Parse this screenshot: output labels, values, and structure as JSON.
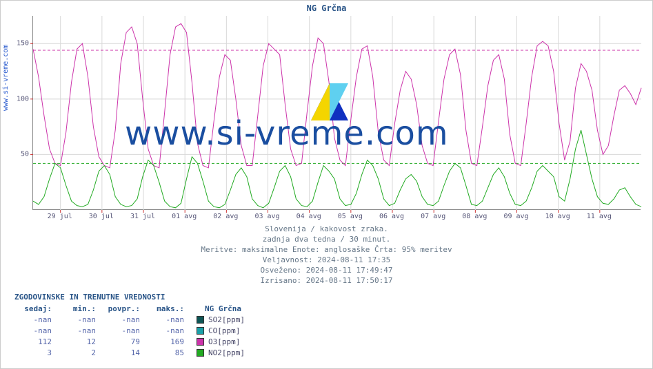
{
  "title": "NG Grčna",
  "ylabel_source": "www.si-vreme.com",
  "watermark_text": "www.si-vreme.com",
  "chart": {
    "type": "line",
    "background_color": "#ffffff",
    "grid_color": "#d8d8d8",
    "grid_on": true,
    "axis_color": "#888888",
    "label_fontsize": 10,
    "ylim": [
      0,
      175
    ],
    "ytick_step": 50,
    "yticks": [
      50,
      100,
      150
    ],
    "xtick_labels": [
      "29 jul",
      "30 jul",
      "31 jul",
      "01 avg",
      "02 avg",
      "03 avg",
      "04 avg",
      "05 avg",
      "06 avg",
      "07 avg",
      "08 avg",
      "09 avg",
      "10 avg",
      "11 avg"
    ],
    "dashed_lines": [
      {
        "y": 144,
        "color": "#cc33aa"
      },
      {
        "y": 42,
        "color": "#22aa22"
      }
    ],
    "series": [
      {
        "name": "O3",
        "color": "#cc33aa",
        "line_width": 1,
        "opacity": 1,
        "data": [
          145,
          120,
          85,
          55,
          42,
          40,
          70,
          115,
          145,
          150,
          120,
          75,
          48,
          40,
          38,
          72,
          132,
          160,
          165,
          150,
          100,
          55,
          40,
          38,
          88,
          140,
          165,
          168,
          160,
          115,
          60,
          40,
          38,
          80,
          120,
          140,
          135,
          100,
          58,
          40,
          40,
          85,
          130,
          150,
          145,
          140,
          95,
          55,
          40,
          42,
          88,
          130,
          155,
          150,
          115,
          65,
          45,
          40,
          82,
          120,
          145,
          148,
          120,
          70,
          45,
          40,
          78,
          108,
          125,
          118,
          95,
          58,
          42,
          40,
          80,
          118,
          140,
          145,
          122,
          72,
          42,
          40,
          75,
          112,
          135,
          140,
          118,
          68,
          42,
          40,
          78,
          120,
          148,
          152,
          148,
          125,
          78,
          45,
          62,
          110,
          132,
          125,
          108,
          72,
          50,
          58,
          85,
          108,
          112,
          105,
          95,
          110
        ]
      },
      {
        "name": "NO2",
        "color": "#22aa22",
        "line_width": 1,
        "opacity": 1,
        "data": [
          8,
          5,
          12,
          28,
          42,
          38,
          22,
          8,
          4,
          3,
          5,
          18,
          35,
          40,
          32,
          12,
          5,
          3,
          4,
          10,
          30,
          45,
          40,
          25,
          8,
          3,
          2,
          6,
          28,
          48,
          42,
          26,
          8,
          3,
          2,
          5,
          18,
          32,
          38,
          30,
          10,
          4,
          2,
          6,
          20,
          35,
          40,
          30,
          10,
          4,
          3,
          8,
          25,
          40,
          35,
          28,
          10,
          4,
          5,
          15,
          32,
          45,
          40,
          28,
          10,
          4,
          6,
          18,
          28,
          32,
          26,
          12,
          5,
          4,
          8,
          22,
          35,
          42,
          38,
          22,
          5,
          4,
          8,
          20,
          32,
          38,
          30,
          15,
          5,
          4,
          8,
          20,
          35,
          40,
          35,
          30,
          12,
          8,
          28,
          55,
          72,
          50,
          28,
          12,
          6,
          5,
          10,
          18,
          20,
          12,
          5,
          3
        ]
      }
    ]
  },
  "caption": {
    "line1": "Slovenija / kakovost zraka.",
    "line2": "zadnja dva tedna / 30 minut.",
    "line3": "Meritve: maksimalne  Enote: anglosaške  Črta: 95% meritev",
    "line4": "Veljavnost: 2024-08-11 17:35",
    "line5": "Osveženo: 2024-08-11 17:49:47",
    "line6": "Izrisano: 2024-08-11 17:50:17"
  },
  "table": {
    "title": "ZGODOVINSKE IN TRENUTNE VREDNOSTI",
    "headers": {
      "now": "sedaj:",
      "min": "min.:",
      "avg": "povpr.:",
      "max": "maks.:",
      "station": "NG Grčna"
    },
    "rows": [
      {
        "now": "-nan",
        "min": "-nan",
        "avg": "-nan",
        "max": "-nan",
        "swatch_color": "#0e5555",
        "label": "SO2[ppm]"
      },
      {
        "now": "-nan",
        "min": "-nan",
        "avg": "-nan",
        "max": "-nan",
        "swatch_color": "#1aa0a8",
        "label": "CO[ppm]"
      },
      {
        "now": "112",
        "min": "12",
        "avg": "79",
        "max": "169",
        "swatch_color": "#cc33aa",
        "label": "O3[ppm]"
      },
      {
        "now": "3",
        "min": "2",
        "avg": "14",
        "max": "85",
        "swatch_color": "#22aa22",
        "label": "NO2[ppm]"
      }
    ]
  },
  "colors": {
    "title": "#2a5588",
    "caption": "#667788",
    "header": "#2a5588",
    "value": "#5566aa",
    "watermark": "#1a4ea0"
  }
}
